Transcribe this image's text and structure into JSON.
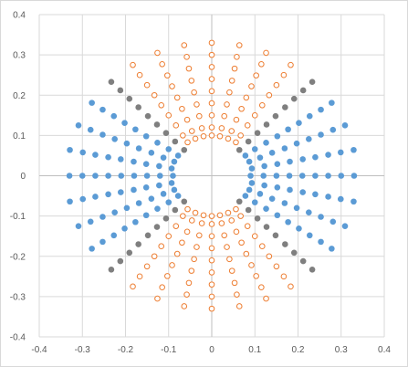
{
  "chart_data": {
    "type": "scatter",
    "title": "",
    "xlabel": "",
    "ylabel": "",
    "xlim": [
      -0.4,
      0.4
    ],
    "ylim": [
      -0.4,
      0.4
    ],
    "xticks": [
      "-0.4",
      "-0.3",
      "-0.2",
      "-0.1",
      "0",
      "0.1",
      "0.2",
      "0.3",
      "0.4"
    ],
    "yticks": [
      "0.4",
      "0.3",
      "0.2",
      "0.1",
      "0",
      "-0.1",
      "-0.2",
      "-0.3",
      "-0.4"
    ],
    "grid": true,
    "legend": "none",
    "series": [
      {
        "marker": "filled circle",
        "color": "#5b9bd5",
        "points": [
          [
            0.33,
            0
          ],
          [
            0.3,
            0
          ],
          [
            0.27,
            0
          ],
          [
            0.24,
            0
          ],
          [
            0.21,
            0
          ],
          [
            0.18,
            0
          ],
          [
            0.15,
            0
          ],
          [
            0.12,
            0
          ],
          [
            0.09,
            0
          ],
          [
            -0.33,
            0
          ],
          [
            -0.3,
            0
          ],
          [
            -0.27,
            0
          ],
          [
            -0.24,
            0
          ],
          [
            -0.21,
            0
          ],
          [
            -0.18,
            0
          ],
          [
            -0.15,
            0
          ],
          [
            -0.12,
            0
          ],
          [
            -0.09,
            0
          ],
          [
            0.329,
            0.064
          ],
          [
            0.299,
            0.058
          ],
          [
            0.27,
            0.052
          ],
          [
            0.24,
            0.046
          ],
          [
            0.211,
            0.041
          ],
          [
            0.181,
            0.035
          ],
          [
            0.152,
            0.029
          ],
          [
            0.122,
            0.024
          ],
          [
            0.093,
            0.018
          ],
          [
            0.329,
            -0.064
          ],
          [
            0.299,
            -0.058
          ],
          [
            0.27,
            -0.052
          ],
          [
            0.24,
            -0.046
          ],
          [
            0.211,
            -0.041
          ],
          [
            0.181,
            -0.035
          ],
          [
            0.152,
            -0.029
          ],
          [
            0.122,
            -0.024
          ],
          [
            0.093,
            -0.018
          ],
          [
            -0.329,
            0.064
          ],
          [
            -0.299,
            0.058
          ],
          [
            -0.27,
            0.052
          ],
          [
            -0.24,
            0.046
          ],
          [
            -0.211,
            0.041
          ],
          [
            -0.181,
            0.035
          ],
          [
            -0.152,
            0.029
          ],
          [
            -0.122,
            0.024
          ],
          [
            -0.093,
            0.018
          ],
          [
            -0.329,
            -0.064
          ],
          [
            -0.299,
            -0.058
          ],
          [
            -0.27,
            -0.052
          ],
          [
            -0.24,
            -0.046
          ],
          [
            -0.211,
            -0.041
          ],
          [
            -0.181,
            -0.035
          ],
          [
            -0.152,
            -0.029
          ],
          [
            -0.122,
            -0.024
          ],
          [
            -0.093,
            -0.018
          ],
          [
            0.309,
            0.125
          ],
          [
            0.281,
            0.114
          ],
          [
            0.253,
            0.102
          ],
          [
            0.225,
            0.091
          ],
          [
            0.197,
            0.08
          ],
          [
            0.169,
            0.068
          ],
          [
            0.14,
            0.057
          ],
          [
            0.112,
            0.045
          ],
          [
            0.087,
            0.035
          ],
          [
            0.309,
            -0.125
          ],
          [
            0.281,
            -0.114
          ],
          [
            0.253,
            -0.102
          ],
          [
            0.225,
            -0.091
          ],
          [
            0.197,
            -0.08
          ],
          [
            0.169,
            -0.068
          ],
          [
            0.14,
            -0.057
          ],
          [
            0.112,
            -0.045
          ],
          [
            0.087,
            -0.035
          ],
          [
            -0.309,
            0.125
          ],
          [
            -0.281,
            0.114
          ],
          [
            -0.253,
            0.102
          ],
          [
            -0.225,
            0.091
          ],
          [
            -0.197,
            0.08
          ],
          [
            -0.169,
            0.068
          ],
          [
            -0.14,
            0.057
          ],
          [
            -0.112,
            0.045
          ],
          [
            -0.087,
            0.035
          ],
          [
            -0.309,
            -0.125
          ],
          [
            -0.281,
            -0.114
          ],
          [
            -0.253,
            -0.102
          ],
          [
            -0.225,
            -0.091
          ],
          [
            -0.197,
            -0.08
          ],
          [
            -0.169,
            -0.068
          ],
          [
            -0.14,
            -0.057
          ],
          [
            -0.112,
            -0.045
          ],
          [
            -0.087,
            -0.035
          ],
          [
            0.278,
            0.181
          ],
          [
            0.253,
            0.164
          ],
          [
            0.227,
            0.148
          ],
          [
            0.202,
            0.131
          ],
          [
            0.177,
            0.115
          ],
          [
            0.152,
            0.098
          ],
          [
            0.126,
            0.082
          ],
          [
            0.1,
            0.066
          ],
          [
            0.078,
            0.05
          ],
          [
            0.278,
            -0.181
          ],
          [
            0.253,
            -0.164
          ],
          [
            0.227,
            -0.148
          ],
          [
            0.202,
            -0.131
          ],
          [
            0.177,
            -0.115
          ],
          [
            0.152,
            -0.098
          ],
          [
            0.126,
            -0.082
          ],
          [
            0.1,
            -0.066
          ],
          [
            0.078,
            -0.05
          ],
          [
            -0.278,
            0.181
          ],
          [
            -0.253,
            0.164
          ],
          [
            -0.227,
            0.148
          ],
          [
            -0.202,
            0.131
          ],
          [
            -0.177,
            0.115
          ],
          [
            -0.152,
            0.098
          ],
          [
            -0.126,
            0.082
          ],
          [
            -0.1,
            0.066
          ],
          [
            -0.078,
            0.05
          ],
          [
            -0.278,
            -0.181
          ],
          [
            -0.253,
            -0.164
          ],
          [
            -0.227,
            -0.148
          ],
          [
            -0.202,
            -0.131
          ],
          [
            -0.177,
            -0.115
          ],
          [
            -0.152,
            -0.098
          ],
          [
            -0.126,
            -0.082
          ],
          [
            -0.1,
            -0.066
          ],
          [
            -0.078,
            -0.05
          ]
        ]
      },
      {
        "marker": "filled circle",
        "color": "#7f7f7f",
        "points": [
          [
            0.233,
            0.233
          ],
          [
            0.212,
            0.212
          ],
          [
            0.191,
            0.191
          ],
          [
            0.17,
            0.17
          ],
          [
            0.148,
            0.148
          ],
          [
            0.127,
            0.127
          ],
          [
            0.106,
            0.106
          ],
          [
            0.085,
            0.085
          ],
          [
            0.064,
            0.064
          ],
          [
            0.233,
            -0.233
          ],
          [
            0.212,
            -0.212
          ],
          [
            0.191,
            -0.191
          ],
          [
            0.17,
            -0.17
          ],
          [
            0.148,
            -0.148
          ],
          [
            0.127,
            -0.127
          ],
          [
            0.106,
            -0.106
          ],
          [
            0.085,
            -0.085
          ],
          [
            0.064,
            -0.064
          ],
          [
            -0.233,
            0.233
          ],
          [
            -0.212,
            0.212
          ],
          [
            -0.191,
            0.191
          ],
          [
            -0.17,
            0.17
          ],
          [
            -0.148,
            0.148
          ],
          [
            -0.127,
            0.127
          ],
          [
            -0.106,
            0.106
          ],
          [
            -0.085,
            0.085
          ],
          [
            -0.064,
            0.064
          ],
          [
            -0.233,
            -0.233
          ],
          [
            -0.212,
            -0.212
          ],
          [
            -0.191,
            -0.191
          ],
          [
            -0.17,
            -0.17
          ],
          [
            -0.148,
            -0.148
          ],
          [
            -0.127,
            -0.127
          ],
          [
            -0.106,
            -0.106
          ],
          [
            -0.085,
            -0.085
          ],
          [
            -0.064,
            -0.064
          ]
        ]
      },
      {
        "marker": "hollow circle",
        "color": "#ed7d31",
        "points": [
          [
            0,
            0.33
          ],
          [
            0,
            0.3
          ],
          [
            0,
            0.27
          ],
          [
            0,
            0.24
          ],
          [
            0,
            0.21
          ],
          [
            0,
            0.18
          ],
          [
            0,
            0.15
          ],
          [
            0,
            0.12
          ],
          [
            0,
            0.1
          ],
          [
            0,
            -0.33
          ],
          [
            0,
            -0.3
          ],
          [
            0,
            -0.27
          ],
          [
            0,
            -0.24
          ],
          [
            0,
            -0.21
          ],
          [
            0,
            -0.18
          ],
          [
            0,
            -0.15
          ],
          [
            0,
            -0.12
          ],
          [
            0,
            -0.1
          ],
          [
            0.064,
            0.324
          ],
          [
            0.058,
            0.295
          ],
          [
            0.053,
            0.266
          ],
          [
            0.047,
            0.236
          ],
          [
            0.041,
            0.207
          ],
          [
            0.035,
            0.177
          ],
          [
            0.029,
            0.148
          ],
          [
            0.023,
            0.118
          ],
          [
            0.019,
            0.098
          ],
          [
            -0.064,
            0.324
          ],
          [
            -0.058,
            0.295
          ],
          [
            -0.053,
            0.266
          ],
          [
            -0.047,
            0.236
          ],
          [
            -0.041,
            0.207
          ],
          [
            -0.035,
            0.177
          ],
          [
            -0.029,
            0.148
          ],
          [
            -0.023,
            0.118
          ],
          [
            -0.019,
            0.098
          ],
          [
            0.064,
            -0.324
          ],
          [
            0.058,
            -0.295
          ],
          [
            0.053,
            -0.266
          ],
          [
            0.047,
            -0.236
          ],
          [
            0.041,
            -0.207
          ],
          [
            0.035,
            -0.177
          ],
          [
            0.029,
            -0.148
          ],
          [
            0.023,
            -0.118
          ],
          [
            0.019,
            -0.098
          ],
          [
            -0.064,
            -0.324
          ],
          [
            -0.058,
            -0.295
          ],
          [
            -0.053,
            -0.266
          ],
          [
            -0.047,
            -0.236
          ],
          [
            -0.041,
            -0.207
          ],
          [
            -0.035,
            -0.177
          ],
          [
            -0.029,
            -0.148
          ],
          [
            -0.023,
            -0.118
          ],
          [
            -0.019,
            -0.098
          ],
          [
            0.126,
            0.305
          ],
          [
            0.115,
            0.277
          ],
          [
            0.103,
            0.249
          ],
          [
            0.092,
            0.222
          ],
          [
            0.08,
            0.194
          ],
          [
            0.069,
            0.166
          ],
          [
            0.057,
            0.139
          ],
          [
            0.046,
            0.111
          ],
          [
            0.038,
            0.092
          ],
          [
            -0.126,
            0.305
          ],
          [
            -0.115,
            0.277
          ],
          [
            -0.103,
            0.249
          ],
          [
            -0.092,
            0.222
          ],
          [
            -0.08,
            0.194
          ],
          [
            -0.069,
            0.166
          ],
          [
            -0.057,
            0.139
          ],
          [
            -0.046,
            0.111
          ],
          [
            -0.038,
            0.092
          ],
          [
            0.126,
            -0.305
          ],
          [
            0.115,
            -0.277
          ],
          [
            0.103,
            -0.249
          ],
          [
            0.092,
            -0.222
          ],
          [
            0.08,
            -0.194
          ],
          [
            0.069,
            -0.166
          ],
          [
            0.057,
            -0.139
          ],
          [
            0.046,
            -0.111
          ],
          [
            0.038,
            -0.092
          ],
          [
            -0.126,
            -0.305
          ],
          [
            -0.115,
            -0.277
          ],
          [
            -0.103,
            -0.249
          ],
          [
            -0.092,
            -0.222
          ],
          [
            -0.08,
            -0.194
          ],
          [
            -0.069,
            -0.166
          ],
          [
            -0.057,
            -0.139
          ],
          [
            -0.046,
            -0.111
          ],
          [
            -0.038,
            -0.092
          ],
          [
            0.183,
            0.275
          ],
          [
            0.167,
            0.25
          ],
          [
            0.15,
            0.225
          ],
          [
            0.133,
            0.2
          ],
          [
            0.117,
            0.175
          ],
          [
            0.1,
            0.15
          ],
          [
            0.083,
            0.125
          ],
          [
            0.067,
            0.1
          ],
          [
            0.056,
            0.083
          ],
          [
            -0.183,
            0.275
          ],
          [
            -0.167,
            0.25
          ],
          [
            -0.15,
            0.225
          ],
          [
            -0.133,
            0.2
          ],
          [
            -0.117,
            0.175
          ],
          [
            -0.1,
            0.15
          ],
          [
            -0.083,
            0.125
          ],
          [
            -0.067,
            0.1
          ],
          [
            -0.056,
            0.083
          ],
          [
            0.183,
            -0.275
          ],
          [
            0.167,
            -0.25
          ],
          [
            0.15,
            -0.225
          ],
          [
            0.133,
            -0.2
          ],
          [
            0.117,
            -0.175
          ],
          [
            0.1,
            -0.15
          ],
          [
            0.083,
            -0.125
          ],
          [
            0.067,
            -0.1
          ],
          [
            0.056,
            -0.083
          ],
          [
            -0.183,
            -0.275
          ],
          [
            -0.167,
            -0.25
          ],
          [
            -0.15,
            -0.225
          ],
          [
            -0.133,
            -0.2
          ],
          [
            -0.117,
            -0.175
          ],
          [
            -0.1,
            -0.15
          ],
          [
            -0.083,
            -0.125
          ],
          [
            -0.067,
            -0.1
          ],
          [
            -0.056,
            -0.083
          ]
        ]
      }
    ]
  }
}
